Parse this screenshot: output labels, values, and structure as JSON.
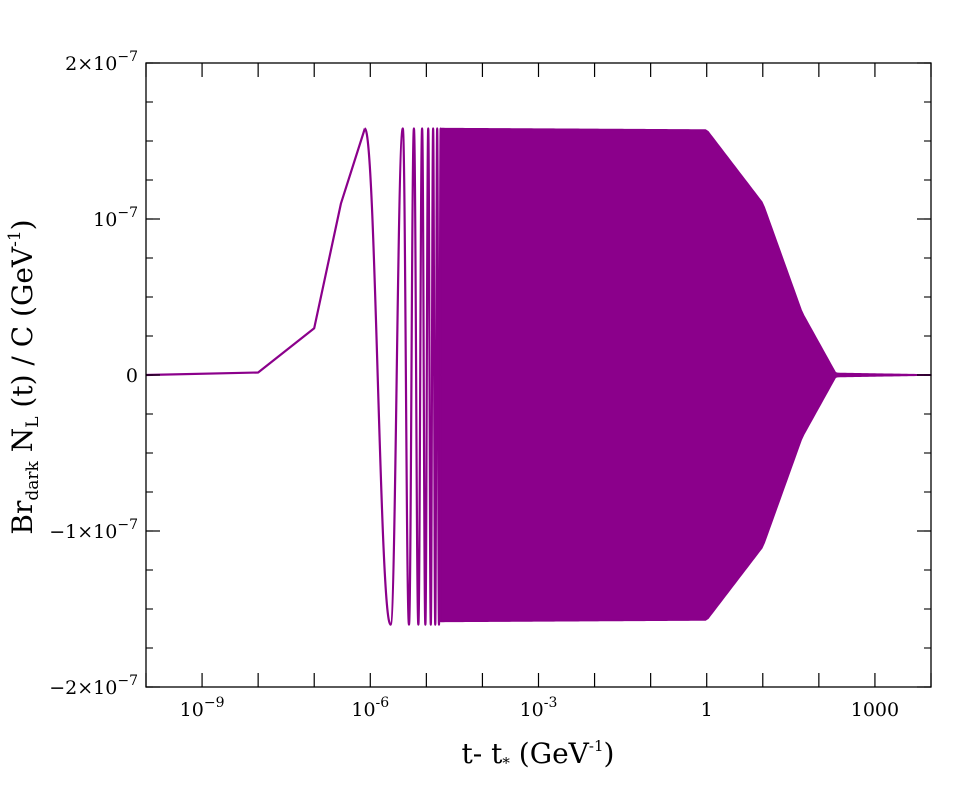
{
  "chart_data": {
    "type": "line",
    "title": "",
    "xlabel": {
      "main": "t- t",
      "sub": "*",
      "unit_open": " (GeV",
      "unit_sup": "-1",
      "unit_close": ")"
    },
    "ylabel": {
      "br": "Br",
      "br_sub": "dark",
      "n": " N",
      "n_sub": "L",
      "rest": " (t) / C (GeV",
      "sup": "-1",
      "close": ")"
    },
    "x_scale": "log",
    "xlim": [
      1e-10,
      10000
    ],
    "ylim": [
      -2e-07,
      2e-07
    ],
    "grid": false,
    "legend": "none",
    "line_color": "#8b008b",
    "x_ticks": [
      {
        "value": 1e-09,
        "base": "10",
        "exp": "−9"
      },
      {
        "value": 1e-06,
        "base": "10",
        "exp": "-6"
      },
      {
        "value": 0.001,
        "base": "10",
        "exp": "-3"
      },
      {
        "value": 1,
        "label": "1"
      },
      {
        "value": 1000,
        "label": "1000"
      }
    ],
    "y_ticks": [
      {
        "value": 2e-07,
        "mant": "2×10",
        "exp": "−7"
      },
      {
        "value": 1e-07,
        "mant": "10",
        "exp": "−7"
      },
      {
        "value": 0,
        "mant": "0",
        "exp": ""
      },
      {
        "value": -1e-07,
        "mant": "−1×10",
        "exp": "−7"
      },
      {
        "value": -2e-07,
        "mant": "−2×10",
        "exp": "−7"
      }
    ],
    "series": [
      {
        "envelope_points": [
          {
            "t": 1e-10,
            "y": 0
          },
          {
            "t": 1e-08,
            "y": 1.6e-09
          },
          {
            "t": 1e-07,
            "y": 3e-08
          },
          {
            "t": 3e-07,
            "y": 1.1e-07
          },
          {
            "t": 8e-07,
            "y": 1.58e-07
          },
          {
            "t": 1e-05,
            "y": 1.58e-07
          },
          {
            "t": 1,
            "y": 1.57e-07
          },
          {
            "t": 10,
            "y": 1.1e-07
          },
          {
            "t": 50,
            "y": 4e-08
          },
          {
            "t": 200,
            "y": 1e-09
          },
          {
            "t": 10000,
            "y": 0
          }
        ],
        "oscillation_peaks": [
          {
            "t": 8e-07,
            "y": 1.58e-07
          },
          {
            "t": 2.3e-06,
            "y": -1.6e-07
          },
          {
            "t": 3.8e-06,
            "y": 1.58e-07
          },
          {
            "t": 4.9e-06,
            "y": -1.6e-07
          },
          {
            "t": 6e-06,
            "y": 1.58e-07
          },
          {
            "t": 7.2e-06,
            "y": -1.6e-07
          },
          {
            "t": 8.4e-06,
            "y": 1.58e-07
          },
          {
            "t": 9.6e-06,
            "y": -1.6e-07
          },
          {
            "t": 1.08e-05,
            "y": 1.58e-07
          },
          {
            "t": 1.2e-05,
            "y": -1.6e-07
          },
          {
            "t": 1.32e-05,
            "y": 1.58e-07
          },
          {
            "t": 1.44e-05,
            "y": -1.6e-07
          },
          {
            "t": 1.56e-05,
            "y": 1.58e-07
          },
          {
            "t": 1.68e-05,
            "y": -1.6e-07
          },
          {
            "t": 1.8e-05,
            "y": 1.58e-07
          }
        ],
        "dense_band": {
          "t_start": 1.8e-05,
          "t_end": 10000
        }
      }
    ]
  }
}
